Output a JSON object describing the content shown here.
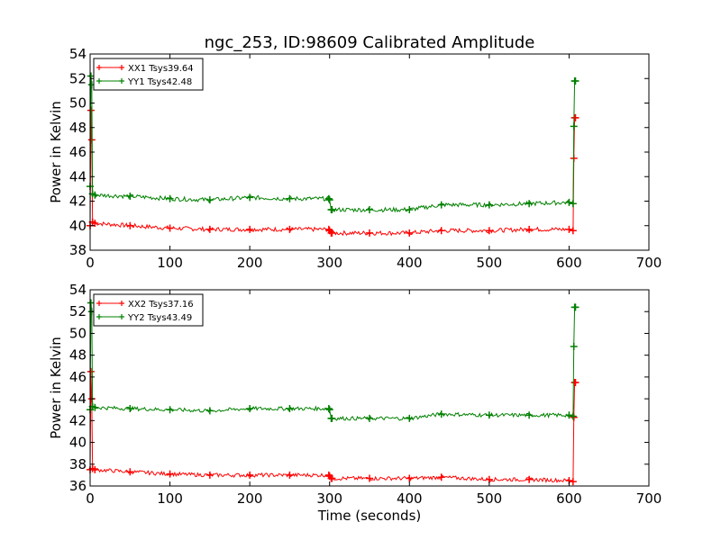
{
  "title": "ngc_253, ID:98609 Calibrated Amplitude",
  "colors": {
    "red": "#ff0000",
    "green": "#008000",
    "frame": "#000000"
  },
  "chart_data": [
    {
      "type": "line",
      "title": "ngc_253, ID:98609 Calibrated Amplitude",
      "xlabel": "",
      "ylabel": "Power in Kelvin",
      "xlim": [
        0,
        700
      ],
      "ylim": [
        38,
        54
      ],
      "x_ticks": [
        "0",
        "100",
        "200",
        "300",
        "400",
        "500",
        "600",
        "700"
      ],
      "y_ticks": [
        "38",
        "40",
        "42",
        "44",
        "46",
        "48",
        "50",
        "52",
        "54"
      ],
      "grid": false,
      "legend_position": "top-left",
      "series": [
        {
          "name": "XX1 Tsys39.64",
          "color": "#ff0000",
          "x": [
            0,
            1,
            2,
            3,
            6,
            50,
            100,
            150,
            200,
            250,
            299,
            300,
            302,
            303,
            350,
            400,
            440,
            500,
            550,
            600,
            605,
            606,
            607,
            608
          ],
          "y": [
            40.0,
            49.4,
            47.0,
            40.3,
            40.2,
            40.0,
            39.8,
            39.7,
            39.7,
            39.7,
            39.7,
            39.6,
            39.4,
            39.4,
            39.4,
            39.4,
            39.6,
            39.6,
            39.7,
            39.7,
            39.6,
            45.5,
            48.8,
            48.8
          ]
        },
        {
          "name": "YY1 Tsys42.48",
          "color": "#008000",
          "x": [
            0,
            1,
            2,
            3,
            6,
            50,
            100,
            150,
            200,
            250,
            299,
            300,
            302,
            303,
            350,
            400,
            440,
            500,
            550,
            600,
            605,
            606,
            607,
            608
          ],
          "y": [
            43.2,
            52.2,
            51.5,
            42.6,
            42.5,
            42.4,
            42.2,
            42.1,
            42.3,
            42.2,
            42.2,
            42.1,
            41.3,
            41.3,
            41.3,
            41.3,
            41.7,
            41.7,
            41.8,
            41.9,
            41.8,
            48.1,
            51.8,
            51.8
          ]
        }
      ]
    },
    {
      "type": "line",
      "title": "",
      "xlabel": "Time (seconds)",
      "ylabel": "Power in Kelvin",
      "xlim": [
        0,
        700
      ],
      "ylim": [
        36,
        54
      ],
      "x_ticks": [
        "0",
        "100",
        "200",
        "300",
        "400",
        "500",
        "600",
        "700"
      ],
      "y_ticks": [
        "36",
        "38",
        "40",
        "42",
        "44",
        "46",
        "48",
        "50",
        "52",
        "54"
      ],
      "grid": false,
      "legend_position": "top-left",
      "series": [
        {
          "name": "XX2 Tsys37.16",
          "color": "#ff0000",
          "x": [
            0,
            1,
            2,
            3,
            6,
            50,
            100,
            150,
            200,
            250,
            299,
            300,
            302,
            303,
            350,
            400,
            440,
            500,
            550,
            600,
            605,
            606,
            607,
            608
          ],
          "y": [
            37.5,
            46.5,
            44.0,
            37.6,
            37.5,
            37.3,
            37.1,
            37.0,
            37.0,
            37.0,
            37.0,
            36.9,
            36.7,
            36.7,
            36.7,
            36.7,
            36.8,
            36.6,
            36.6,
            36.5,
            36.4,
            42.3,
            45.5,
            45.5
          ]
        },
        {
          "name": "YY2 Tsys43.49",
          "color": "#008000",
          "x": [
            0,
            1,
            2,
            3,
            6,
            50,
            100,
            150,
            200,
            250,
            299,
            300,
            302,
            303,
            350,
            400,
            440,
            500,
            550,
            600,
            605,
            606,
            607,
            608
          ],
          "y": [
            43.0,
            52.8,
            52.0,
            43.3,
            43.2,
            43.1,
            43.0,
            42.9,
            43.1,
            43.1,
            43.1,
            43.0,
            42.2,
            42.2,
            42.2,
            42.2,
            42.6,
            42.5,
            42.5,
            42.5,
            42.4,
            48.8,
            52.4,
            52.4
          ]
        }
      ]
    }
  ]
}
